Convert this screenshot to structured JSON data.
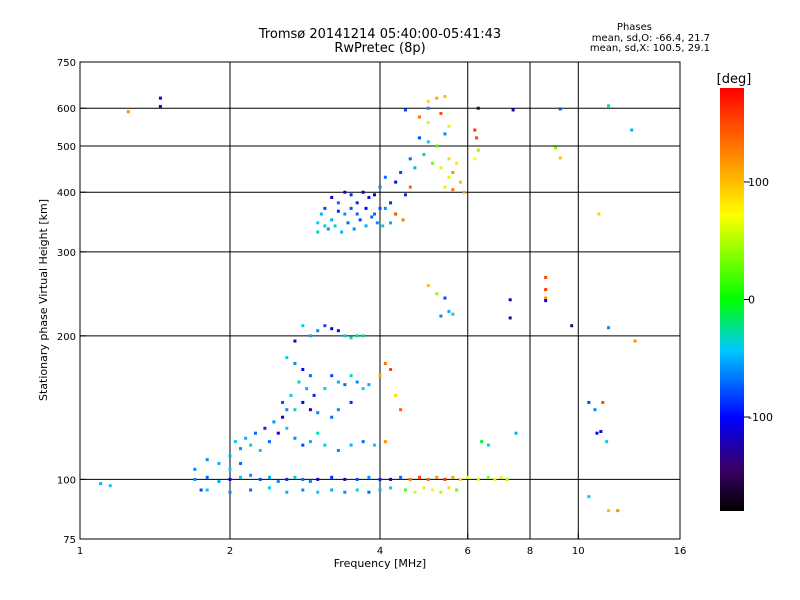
{
  "header": {
    "title_line1": "Tromsø 20141214 05:40:00-05:41:43",
    "title_line2": "RwPretec (8p)",
    "phases_heading": "Phases",
    "stat_o": "mean, sd,O: -66.4, 21.7",
    "stat_x": "mean, sd,X: 100.5, 29.1"
  },
  "colorbar": {
    "label": "[deg]",
    "ticks": [
      {
        "value": 100,
        "label": "100"
      },
      {
        "value": 0,
        "label": "0"
      },
      {
        "value": -100,
        "label": "-100"
      }
    ],
    "range": [
      -180,
      180
    ]
  },
  "chart_data": {
    "type": "scatter",
    "title": "Tromsø 20141214 05:40:00-05:41:43",
    "subtitle": "RwPretec (8p)",
    "xlabel": "Frequency [MHz]",
    "ylabel": "Stationary phase Virtual Height [km]",
    "xscale": "log",
    "yscale": "log",
    "xlim": [
      1,
      16
    ],
    "ylim": [
      75,
      750
    ],
    "xticks": [
      1,
      2,
      4,
      6,
      8,
      10,
      16
    ],
    "xtick_labels": [
      "1",
      "2",
      "4",
      "6",
      "8",
      "10",
      "16"
    ],
    "xgrid": [
      2,
      4,
      6,
      8,
      10
    ],
    "yticks": [
      75,
      100,
      200,
      300,
      400,
      500,
      600,
      750
    ],
    "ytick_labels": [
      "75",
      "100",
      "200",
      "300",
      "400",
      "500",
      "600",
      "750"
    ],
    "ygrid": [
      100,
      200,
      300,
      400,
      500,
      600
    ],
    "grid": true,
    "color_variable": "phase [deg]",
    "color_range": [
      -180,
      180
    ],
    "points": [
      [
        1.25,
        590,
        120
      ],
      [
        1.45,
        630,
        -100
      ],
      [
        1.45,
        605,
        -110
      ],
      [
        4.5,
        595,
        -80
      ],
      [
        5.0,
        600,
        -60
      ],
      [
        6.3,
        600,
        -150
      ],
      [
        7.4,
        595,
        -120
      ],
      [
        9.2,
        598,
        -80
      ],
      [
        11.5,
        607,
        -30
      ],
      [
        12.8,
        540,
        -50
      ],
      [
        5.0,
        620,
        90
      ],
      [
        5.2,
        630,
        110
      ],
      [
        5.4,
        635,
        100
      ],
      [
        4.8,
        575,
        130
      ],
      [
        5.0,
        560,
        60
      ],
      [
        5.3,
        585,
        150
      ],
      [
        5.5,
        550,
        80
      ],
      [
        4.8,
        520,
        -80
      ],
      [
        5.0,
        510,
        -40
      ],
      [
        5.2,
        500,
        20
      ],
      [
        5.4,
        530,
        -60
      ],
      [
        5.5,
        470,
        90
      ],
      [
        5.6,
        440,
        120
      ],
      [
        5.7,
        460,
        80
      ],
      [
        5.8,
        420,
        100
      ],
      [
        5.9,
        400,
        110
      ],
      [
        5.6,
        405,
        130
      ],
      [
        5.5,
        430,
        60
      ],
      [
        6.2,
        540,
        160
      ],
      [
        6.25,
        520,
        150
      ],
      [
        6.3,
        490,
        40
      ],
      [
        6.2,
        470,
        70
      ],
      [
        4.6,
        470,
        -70
      ],
      [
        4.4,
        440,
        -80
      ],
      [
        4.7,
        450,
        -50
      ],
      [
        4.9,
        480,
        -20
      ],
      [
        5.1,
        460,
        30
      ],
      [
        5.3,
        450,
        60
      ],
      [
        5.4,
        410,
        80
      ],
      [
        4.5,
        395,
        -90
      ],
      [
        4.3,
        420,
        -100
      ],
      [
        4.1,
        430,
        -70
      ],
      [
        4.0,
        410,
        -60
      ],
      [
        4.6,
        410,
        140
      ],
      [
        4.2,
        380,
        -90
      ],
      [
        4.0,
        370,
        -80
      ],
      [
        3.9,
        360,
        -70
      ],
      [
        3.8,
        390,
        -100
      ],
      [
        3.6,
        380,
        -90
      ],
      [
        3.5,
        370,
        -80
      ],
      [
        3.4,
        360,
        -60
      ],
      [
        3.3,
        380,
        -70
      ],
      [
        3.2,
        350,
        -50
      ],
      [
        3.1,
        340,
        -40
      ],
      [
        3.0,
        330,
        -30
      ],
      [
        3.05,
        360,
        -50
      ],
      [
        3.15,
        335,
        -60
      ],
      [
        3.25,
        340,
        -40
      ],
      [
        3.35,
        330,
        -50
      ],
      [
        3.45,
        345,
        -70
      ],
      [
        3.55,
        335,
        -60
      ],
      [
        3.65,
        350,
        -80
      ],
      [
        3.75,
        340,
        -50
      ],
      [
        3.85,
        355,
        -70
      ],
      [
        3.95,
        345,
        -60
      ],
      [
        3.1,
        370,
        -80
      ],
      [
        3.2,
        390,
        -110
      ],
      [
        3.4,
        400,
        -100
      ],
      [
        3.5,
        395,
        -90
      ],
      [
        3.7,
        400,
        -120
      ],
      [
        3.9,
        395,
        -110
      ],
      [
        4.1,
        370,
        -60
      ],
      [
        4.3,
        360,
        150
      ],
      [
        4.45,
        350,
        130
      ],
      [
        4.2,
        345,
        -50
      ],
      [
        4.05,
        340,
        -40
      ],
      [
        3.3,
        365,
        -90
      ],
      [
        3.6,
        360,
        -70
      ],
      [
        3.75,
        370,
        -100
      ],
      [
        3.0,
        345,
        -40
      ],
      [
        5.0,
        255,
        100
      ],
      [
        5.2,
        245,
        40
      ],
      [
        5.4,
        240,
        -80
      ],
      [
        5.3,
        220,
        -60
      ],
      [
        5.5,
        225,
        -50
      ],
      [
        5.6,
        222,
        -30
      ],
      [
        7.3,
        238,
        -110
      ],
      [
        7.3,
        218,
        -130
      ],
      [
        8.6,
        265,
        150
      ],
      [
        8.6,
        250,
        160
      ],
      [
        8.6,
        240,
        120
      ],
      [
        8.6,
        237,
        -110
      ],
      [
        9.7,
        210,
        -140
      ],
      [
        11.5,
        208,
        -60
      ],
      [
        13.0,
        195,
        120
      ],
      [
        11.0,
        360,
        90
      ],
      [
        9.2,
        472,
        100
      ],
      [
        9.0,
        495,
        40
      ],
      [
        2.8,
        210,
        -40
      ],
      [
        2.9,
        200,
        -50
      ],
      [
        3.0,
        205,
        -60
      ],
      [
        3.1,
        210,
        -80
      ],
      [
        3.2,
        207,
        -110
      ],
      [
        3.3,
        205,
        -100
      ],
      [
        3.4,
        200,
        -40
      ],
      [
        3.5,
        198,
        -30
      ],
      [
        3.6,
        200,
        -20
      ],
      [
        3.7,
        200,
        -30
      ],
      [
        2.7,
        195,
        -120
      ],
      [
        2.6,
        180,
        -40
      ],
      [
        2.7,
        175,
        -60
      ],
      [
        2.8,
        170,
        -100
      ],
      [
        2.9,
        165,
        -70
      ],
      [
        2.75,
        160,
        -30
      ],
      [
        2.85,
        155,
        -50
      ],
      [
        2.95,
        150,
        -90
      ],
      [
        2.65,
        150,
        -40
      ],
      [
        2.55,
        145,
        -80
      ],
      [
        2.6,
        140,
        -60
      ],
      [
        2.7,
        140,
        -30
      ],
      [
        2.8,
        145,
        -100
      ],
      [
        2.9,
        140,
        -120
      ],
      [
        3.0,
        138,
        -60
      ],
      [
        3.1,
        155,
        -40
      ],
      [
        3.2,
        165,
        -80
      ],
      [
        3.3,
        160,
        -50
      ],
      [
        3.4,
        158,
        -70
      ],
      [
        3.5,
        165,
        -30
      ],
      [
        3.6,
        160,
        -60
      ],
      [
        3.7,
        155,
        -40
      ],
      [
        3.8,
        158,
        -50
      ],
      [
        3.5,
        145,
        -90
      ],
      [
        3.3,
        140,
        -60
      ],
      [
        3.2,
        135,
        -70
      ],
      [
        3.0,
        125,
        -30
      ],
      [
        2.9,
        120,
        -50
      ],
      [
        2.8,
        118,
        -80
      ],
      [
        2.7,
        122,
        -60
      ],
      [
        2.6,
        128,
        -40
      ],
      [
        2.5,
        125,
        -100
      ],
      [
        2.4,
        120,
        -70
      ],
      [
        2.3,
        115,
        -40
      ],
      [
        2.2,
        118,
        -30
      ],
      [
        2.1,
        116,
        -60
      ],
      [
        2.0,
        112,
        -50
      ],
      [
        2.05,
        120,
        -40
      ],
      [
        2.15,
        122,
        -50
      ],
      [
        2.25,
        125,
        -70
      ],
      [
        2.35,
        128,
        -90
      ],
      [
        2.45,
        132,
        -60
      ],
      [
        2.55,
        135,
        -120
      ],
      [
        3.1,
        118,
        -40
      ],
      [
        3.3,
        115,
        -60
      ],
      [
        3.5,
        118,
        -50
      ],
      [
        3.7,
        120,
        -70
      ],
      [
        3.9,
        118,
        -40
      ],
      [
        4.1,
        120,
        120
      ],
      [
        4.2,
        170,
        150
      ],
      [
        4.1,
        175,
        130
      ],
      [
        4.0,
        165,
        110
      ],
      [
        4.3,
        150,
        90
      ],
      [
        4.4,
        140,
        140
      ],
      [
        1.8,
        110,
        -60
      ],
      [
        1.9,
        108,
        -50
      ],
      [
        2.0,
        105,
        -40
      ],
      [
        2.1,
        108,
        -70
      ],
      [
        1.7,
        105,
        -60
      ],
      [
        1.75,
        95,
        -80
      ],
      [
        1.1,
        98,
        -50
      ],
      [
        1.15,
        97,
        -40
      ],
      [
        1.7,
        100,
        -60
      ],
      [
        1.8,
        101,
        -70
      ],
      [
        1.9,
        99,
        -50
      ],
      [
        2.0,
        100,
        -100
      ],
      [
        2.1,
        101,
        -40
      ],
      [
        2.2,
        102,
        -60
      ],
      [
        2.3,
        100,
        -80
      ],
      [
        2.4,
        101,
        -50
      ],
      [
        2.5,
        99,
        -60
      ],
      [
        2.6,
        100,
        -90
      ],
      [
        2.7,
        101,
        -40
      ],
      [
        2.8,
        100,
        -70
      ],
      [
        2.9,
        99,
        -60
      ],
      [
        3.0,
        100,
        -110
      ],
      [
        3.2,
        101,
        -90
      ],
      [
        3.4,
        100,
        -120
      ],
      [
        3.6,
        100,
        -80
      ],
      [
        3.8,
        101,
        -60
      ],
      [
        4.0,
        100,
        -90
      ],
      [
        4.2,
        100,
        -110
      ],
      [
        4.4,
        101,
        -70
      ],
      [
        4.6,
        100,
        130
      ],
      [
        4.8,
        101,
        150
      ],
      [
        5.0,
        100,
        140
      ],
      [
        5.2,
        101,
        120
      ],
      [
        5.4,
        100,
        160
      ],
      [
        5.6,
        101,
        110
      ],
      [
        5.8,
        100,
        90
      ],
      [
        6.0,
        101,
        70
      ],
      [
        6.3,
        100,
        60
      ],
      [
        6.6,
        101,
        40
      ],
      [
        6.8,
        100,
        60
      ],
      [
        7.0,
        101,
        80
      ],
      [
        7.2,
        100,
        50
      ],
      [
        1.8,
        95,
        -40
      ],
      [
        2.0,
        94,
        -60
      ],
      [
        2.2,
        95,
        -70
      ],
      [
        2.4,
        96,
        -40
      ],
      [
        2.6,
        94,
        -50
      ],
      [
        2.8,
        95,
        -60
      ],
      [
        3.0,
        94,
        -40
      ],
      [
        3.2,
        95,
        -50
      ],
      [
        3.4,
        94,
        -60
      ],
      [
        3.6,
        95,
        -30
      ],
      [
        3.8,
        94,
        -70
      ],
      [
        4.0,
        95,
        -50
      ],
      [
        4.2,
        96,
        -40
      ],
      [
        4.5,
        95,
        20
      ],
      [
        4.7,
        94,
        60
      ],
      [
        4.9,
        96,
        80
      ],
      [
        5.1,
        95,
        70
      ],
      [
        5.3,
        94,
        50
      ],
      [
        5.5,
        96,
        90
      ],
      [
        5.7,
        95,
        30
      ],
      [
        6.4,
        120,
        -10
      ],
      [
        6.6,
        118,
        -30
      ],
      [
        7.5,
        125,
        -50
      ],
      [
        10.5,
        145,
        -80
      ],
      [
        10.8,
        140,
        -60
      ],
      [
        11.2,
        145,
        150
      ],
      [
        10.9,
        125,
        -110
      ],
      [
        11.1,
        126,
        -100
      ],
      [
        11.4,
        120,
        -40
      ],
      [
        10.5,
        92,
        -40
      ],
      [
        11.5,
        86,
        100
      ],
      [
        12.0,
        86,
        120
      ]
    ]
  }
}
